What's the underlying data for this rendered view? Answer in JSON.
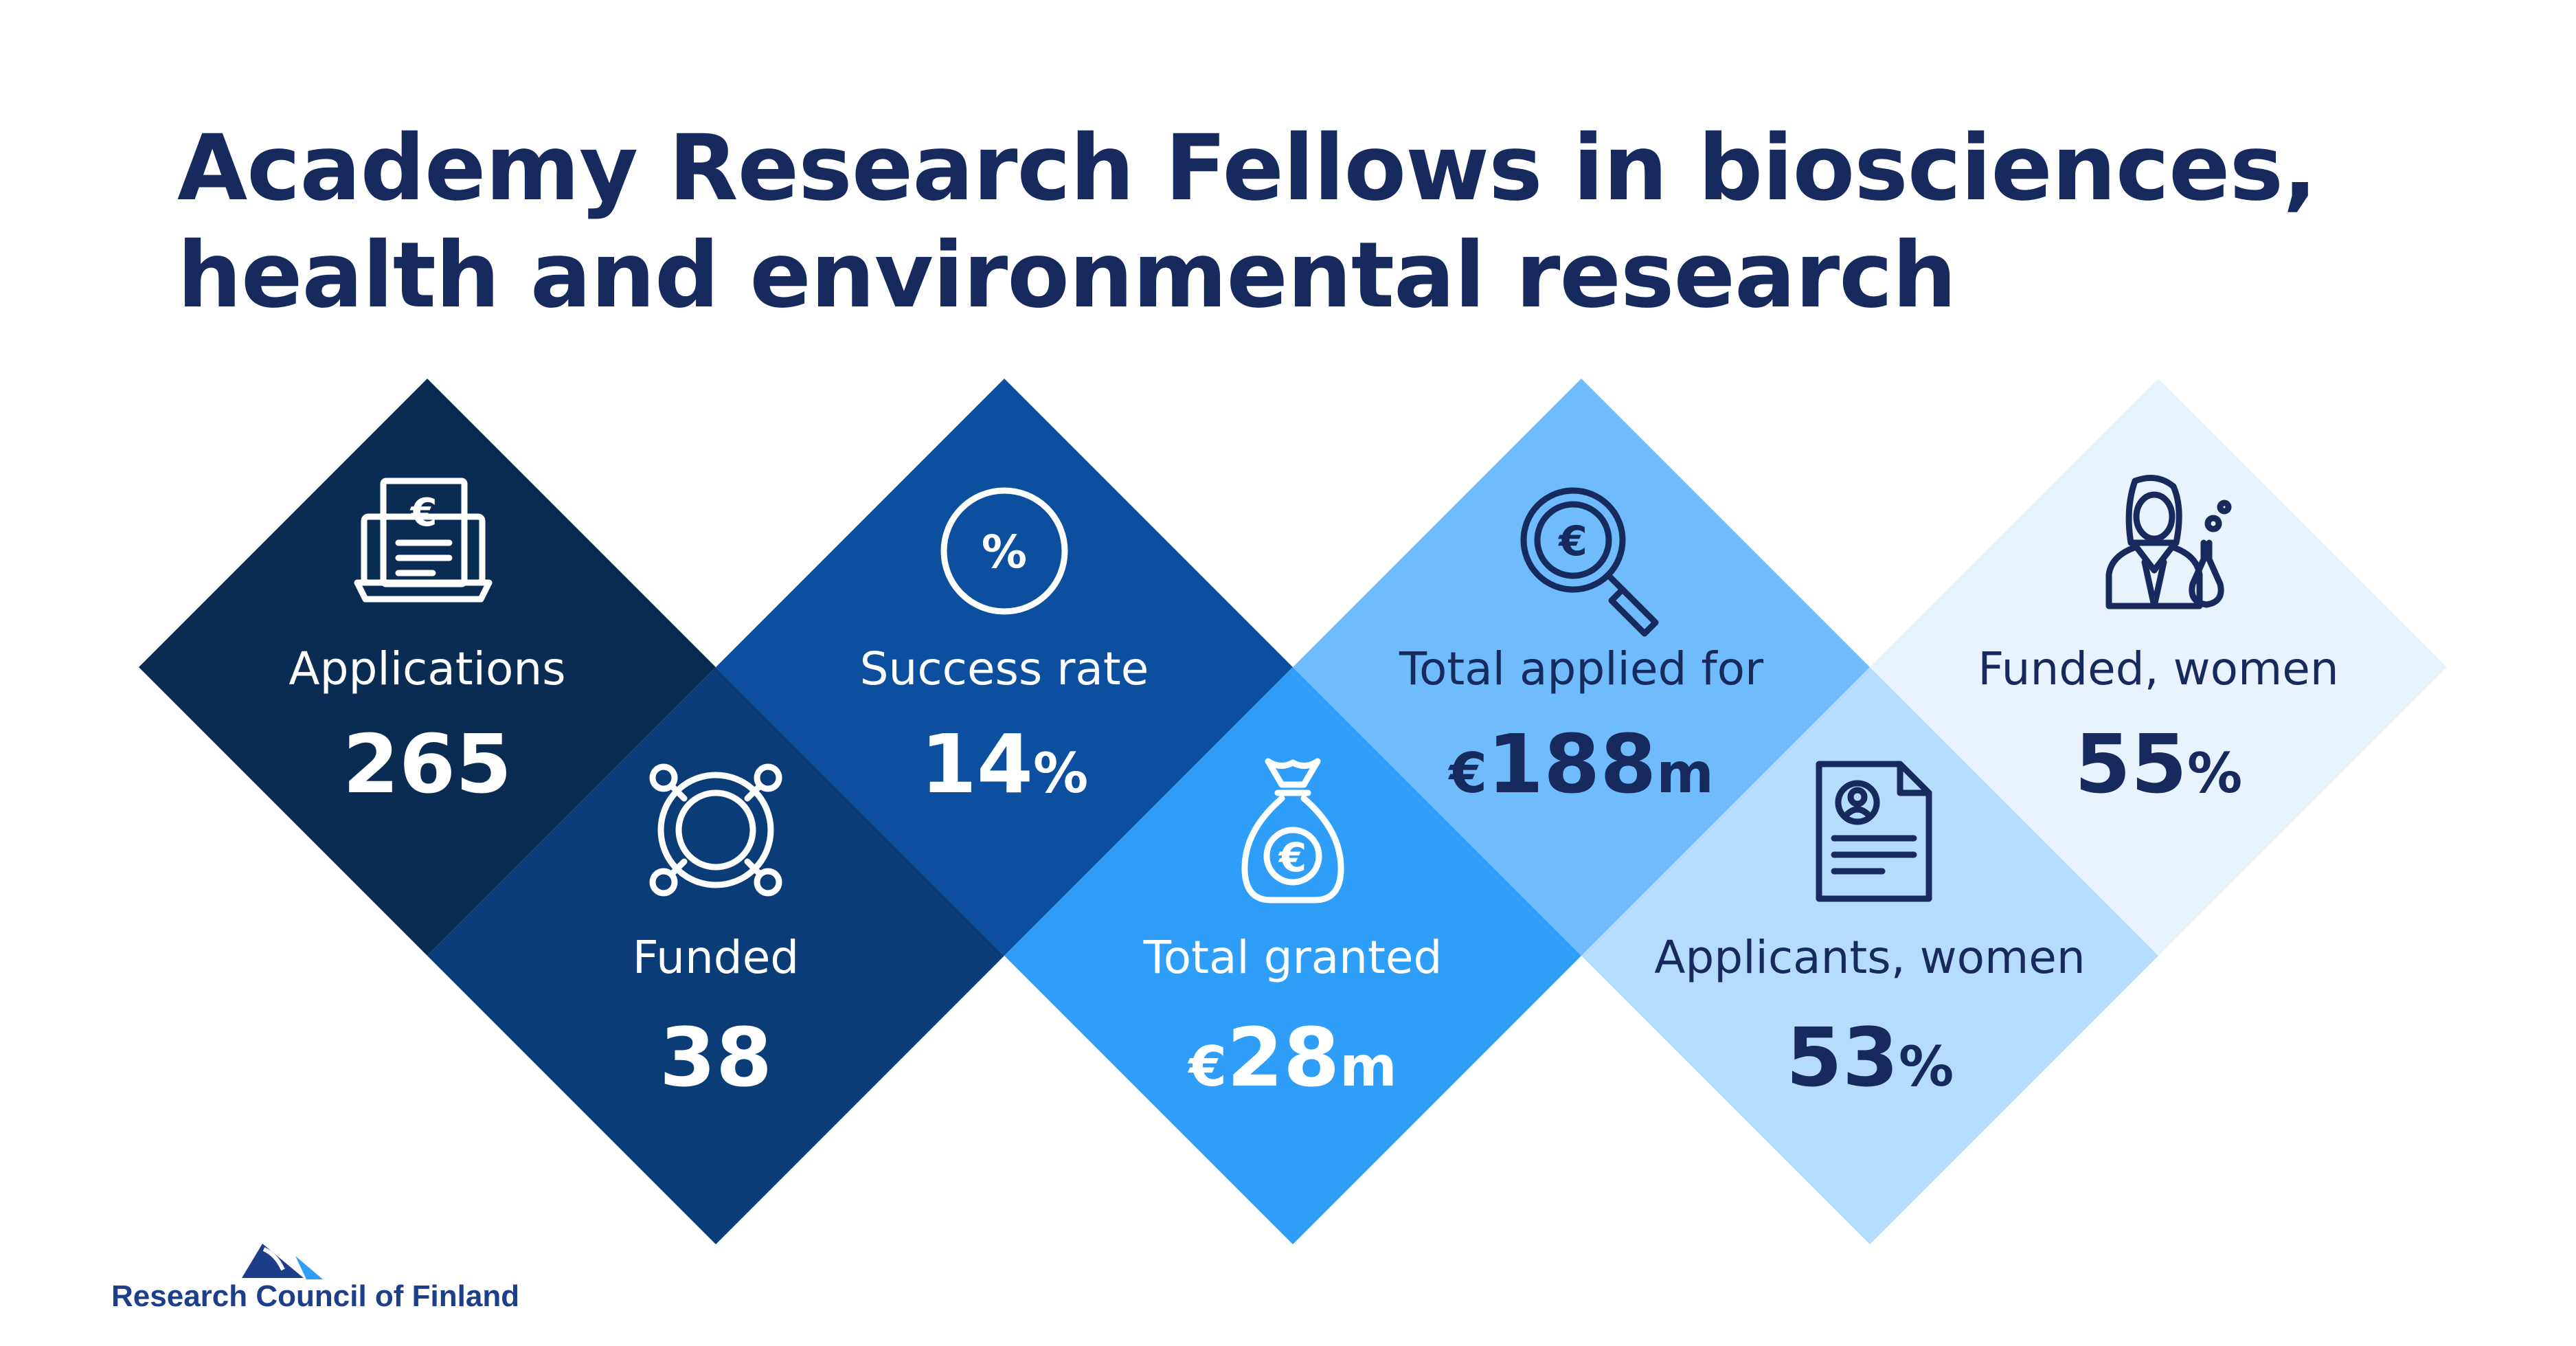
{
  "title": {
    "line1": "Academy Research Fellows in biosciences,",
    "line2": "health and environmental research"
  },
  "stats": [
    {
      "label": "Applications",
      "value": "265",
      "suffix": "",
      "prefix": "",
      "icon": "laptop-euro-document-icon",
      "color": "#0b2c52"
    },
    {
      "label": "Funded",
      "value": "38",
      "suffix": "",
      "prefix": "",
      "icon": "network-hub-icon",
      "color": "#0a3d78"
    },
    {
      "label": "Success rate",
      "value": "14",
      "suffix": "%",
      "prefix": "",
      "icon": "percent-icon",
      "color": "#0b4f9e"
    },
    {
      "label": "Total granted",
      "value": "28",
      "prefix": "€",
      "suffix": "m",
      "icon": "money-bag-euro-icon",
      "color": "#2e9ef9"
    },
    {
      "label": "Total applied for",
      "value": "188",
      "prefix": "€",
      "suffix": "m",
      "icon": "euro-magnifier-icon",
      "color": "#6fbbfb"
    },
    {
      "label": "Applicants, women",
      "value": "53",
      "suffix": "%",
      "prefix": "",
      "icon": "profile-document-icon",
      "color": "#b5dcfd"
    },
    {
      "label": "Funded, women",
      "value": "55",
      "suffix": "%",
      "prefix": "",
      "icon": "woman-scientist-icon",
      "color": "#e9f3fe"
    }
  ],
  "logo": {
    "text": "Research Council of Finland",
    "color": "#1d3f8a"
  }
}
